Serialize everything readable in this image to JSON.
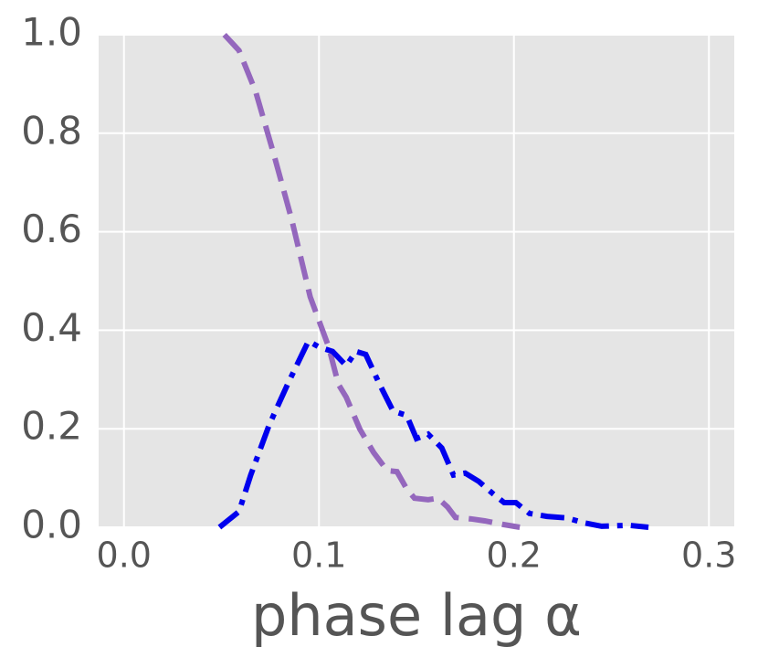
{
  "chart_data": {
    "type": "line",
    "xlabel": "phase lag α",
    "xlim": [
      -0.013,
      0.313
    ],
    "ylim": [
      0,
      1
    ],
    "xticks": [
      {
        "value": 0,
        "label": "0.0"
      },
      0.1,
      0.2,
      0.3
    ],
    "yticks": [
      {
        "value": 0,
        "label": "0.0"
      },
      0.2,
      0.4,
      0.6,
      0.8,
      {
        "value": 1,
        "label": "1.0"
      }
    ],
    "grid": true,
    "series": [
      {
        "color": "#9467bd",
        "linestyle": "dashed",
        "x": [
          0.0515,
          0.059,
          0.0675,
          0.077,
          0.086,
          0.0955,
          0.105,
          0.11,
          0.114,
          0.121,
          0.128,
          0.135,
          0.14,
          0.145,
          0.149,
          0.156,
          0.161,
          0.166,
          0.17,
          0.178,
          0.185,
          0.194,
          0.203
        ],
        "values": [
          1.0,
          0.968,
          0.885,
          0.755,
          0.625,
          0.468,
          0.366,
          0.29,
          0.264,
          0.199,
          0.152,
          0.115,
          0.113,
          0.078,
          0.059,
          0.056,
          0.059,
          0.041,
          0.02,
          0.017,
          0.013,
          0.006,
          0
        ]
      },
      {
        "color": "#0000ee",
        "linestyle": "dashdot",
        "x": [
          0.049,
          0.059,
          0.065,
          0.0745,
          0.084,
          0.0946,
          0.1,
          0.107,
          0.114,
          0.119,
          0.124,
          0.131,
          0.138,
          0.145,
          0.15,
          0.156,
          0.163,
          0.169,
          0.175,
          0.182,
          0.189,
          0.195,
          0.201,
          0.208,
          0.217,
          0.227,
          0.236,
          0.245,
          0.259,
          0.269
        ],
        "values": [
          0,
          0.032,
          0.106,
          0.208,
          0.291,
          0.378,
          0.366,
          0.357,
          0.328,
          0.357,
          0.351,
          0.291,
          0.236,
          0.227,
          0.18,
          0.189,
          0.161,
          0.106,
          0.11,
          0.093,
          0.069,
          0.05,
          0.05,
          0.028,
          0.022,
          0.019,
          0.009,
          0.002,
          0.004,
          0
        ]
      }
    ]
  }
}
